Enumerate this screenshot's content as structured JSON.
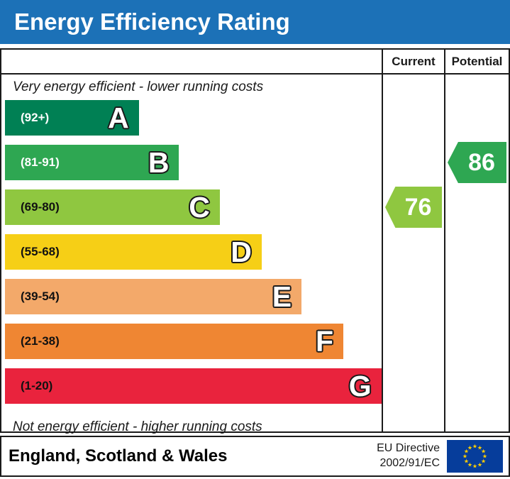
{
  "header": {
    "title": "Energy Efficiency Rating"
  },
  "table": {
    "current_label": "Current",
    "potential_label": "Potential"
  },
  "chart_data": {
    "type": "bar",
    "title": "Energy Efficiency Rating",
    "top_annotation": "Very energy efficient - lower running costs",
    "bottom_annotation": "Not energy efficient - higher running costs",
    "categories": [
      "A",
      "B",
      "C",
      "D",
      "E",
      "F",
      "G"
    ],
    "bands": [
      {
        "letter": "A",
        "range": "(92+)",
        "color": "#008054",
        "range_text_color": "#ffffff",
        "width_pct": 35.2
      },
      {
        "letter": "B",
        "range": "(81-91)",
        "color": "#2ea752",
        "range_text_color": "#ffffff",
        "width_pct": 45.8
      },
      {
        "letter": "C",
        "range": "(69-80)",
        "color": "#8fc740",
        "range_text_color": "#111111",
        "width_pct": 56.5
      },
      {
        "letter": "D",
        "range": "(55-68)",
        "color": "#f6cf16",
        "range_text_color": "#111111",
        "width_pct": 67.5
      },
      {
        "letter": "E",
        "range": "(39-54)",
        "color": "#f3a96a",
        "range_text_color": "#111111",
        "width_pct": 78.0
      },
      {
        "letter": "F",
        "range": "(21-38)",
        "color": "#ef8633",
        "range_text_color": "#111111",
        "width_pct": 89.0
      },
      {
        "letter": "G",
        "range": "(1-20)",
        "color": "#e9233d",
        "range_text_color": "#111111",
        "width_pct": 99.0
      }
    ],
    "markers": [
      {
        "column": "Current",
        "value": "76",
        "band": "C",
        "band_index": 2,
        "color": "#8fc740"
      },
      {
        "column": "Potential",
        "value": "86",
        "band": "B",
        "band_index": 1,
        "color": "#2ea752"
      }
    ],
    "legend_position": "none",
    "grid": false
  },
  "footer": {
    "region": "England, Scotland & Wales",
    "directive_line1": "EU Directive",
    "directive_line2": "2002/91/EC"
  },
  "colors": {
    "title_bar": "#1c71b7",
    "border": "#1a1a1a",
    "eu_flag_blue": "#063d9b",
    "eu_flag_star": "#ffcf00"
  }
}
